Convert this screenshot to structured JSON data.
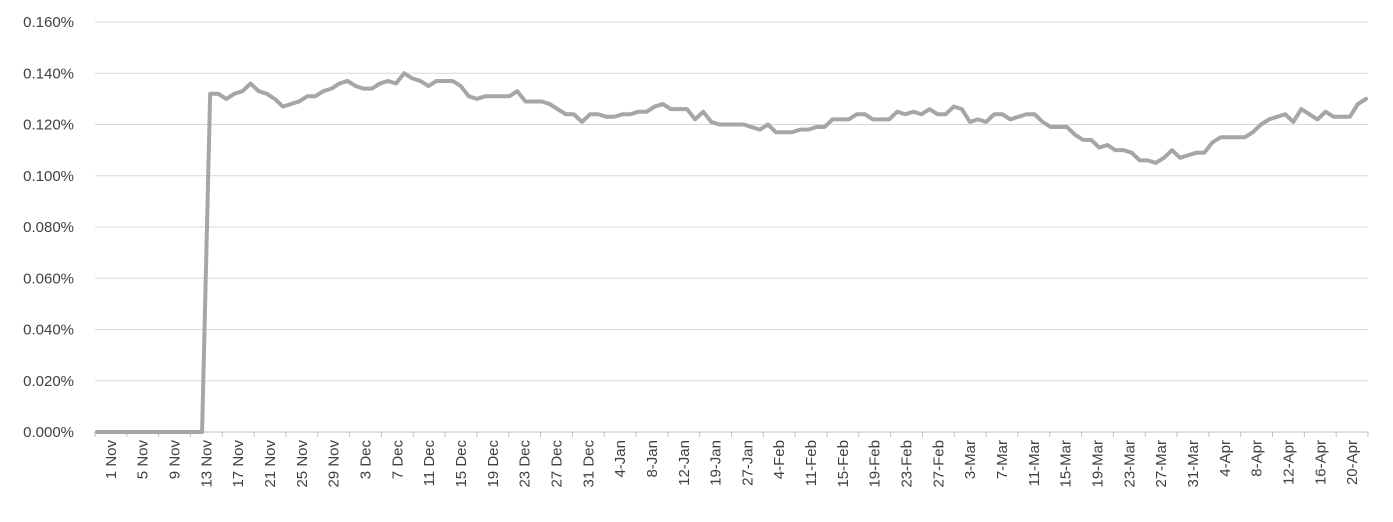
{
  "chart_data": {
    "type": "line",
    "title": "",
    "xlabel": "",
    "ylabel": "",
    "ylim": [
      0,
      0.0016
    ],
    "y_tick_labels": [
      "0.000%",
      "0.020%",
      "0.040%",
      "0.060%",
      "0.080%",
      "0.100%",
      "0.120%",
      "0.140%",
      "0.160%"
    ],
    "y_tick_values": [
      0,
      0.0002,
      0.0004,
      0.0006,
      0.0008,
      0.001,
      0.0012,
      0.0014,
      0.0016
    ],
    "grid": true,
    "legend": "none",
    "line_color": "#a6a6a6",
    "x_tick_labels": [
      "1 Nov",
      "5 Nov",
      "9 Nov",
      "13 Nov",
      "17 Nov",
      "21 Nov",
      "25 Nov",
      "29 Nov",
      "3 Dec",
      "7 Dec",
      "11 Dec",
      "15 Dec",
      "19 Dec",
      "23 Dec",
      "27 Dec",
      "31 Dec",
      "4-Jan",
      "8-Jan",
      "12-Jan",
      "19-Jan",
      "27-Jan",
      "4-Feb",
      "11-Feb",
      "15-Feb",
      "19-Feb",
      "23-Feb",
      "27-Feb",
      "3-Mar",
      "7-Mar",
      "11-Mar",
      "15-Mar",
      "19-Mar",
      "23-Mar",
      "27-Mar",
      "31-Mar",
      "4-Apr",
      "8-Apr",
      "12-Apr",
      "16-Apr",
      "20-Apr"
    ],
    "series": [
      {
        "values": [
          0,
          0,
          0,
          0,
          0,
          0,
          0,
          0,
          0,
          0,
          0,
          0,
          0,
          0,
          0.00132,
          0.00132,
          0.0013,
          0.00132,
          0.00133,
          0.00136,
          0.00133,
          0.00132,
          0.0013,
          0.00127,
          0.00128,
          0.00129,
          0.00131,
          0.00131,
          0.00133,
          0.00134,
          0.00136,
          0.00137,
          0.00135,
          0.00134,
          0.00134,
          0.00136,
          0.00137,
          0.00136,
          0.0014,
          0.00138,
          0.00137,
          0.00135,
          0.00137,
          0.00137,
          0.00137,
          0.00135,
          0.00131,
          0.0013,
          0.00131,
          0.00131,
          0.00131,
          0.00131,
          0.00133,
          0.00129,
          0.00129,
          0.00129,
          0.00128,
          0.00126,
          0.00124,
          0.00124,
          0.00121,
          0.00124,
          0.00124,
          0.00123,
          0.00123,
          0.00124,
          0.00124,
          0.00125,
          0.00125,
          0.00127,
          0.00128,
          0.00126,
          0.00126,
          0.00126,
          0.00122,
          0.00125,
          0.00121,
          0.0012,
          0.0012,
          0.0012,
          0.0012,
          0.00119,
          0.00118,
          0.0012,
          0.00117,
          0.00117,
          0.00117,
          0.00118,
          0.00118,
          0.00119,
          0.00119,
          0.00122,
          0.00122,
          0.00122,
          0.00124,
          0.00124,
          0.00122,
          0.00122,
          0.00122,
          0.00125,
          0.00124,
          0.00125,
          0.00124,
          0.00126,
          0.00124,
          0.00124,
          0.00127,
          0.00126,
          0.00121,
          0.00122,
          0.00121,
          0.00124,
          0.00124,
          0.00122,
          0.00123,
          0.00124,
          0.00124,
          0.00121,
          0.00119,
          0.00119,
          0.00119,
          0.00116,
          0.00114,
          0.00114,
          0.00111,
          0.00112,
          0.0011,
          0.0011,
          0.00109,
          0.00106,
          0.00106,
          0.00105,
          0.00107,
          0.0011,
          0.00107,
          0.00108,
          0.00109,
          0.00109,
          0.00113,
          0.00115,
          0.00115,
          0.00115,
          0.00115,
          0.00117,
          0.0012,
          0.00122,
          0.00123,
          0.00124,
          0.00121,
          0.00126,
          0.00124,
          0.00122,
          0.00125,
          0.00123,
          0.00123,
          0.00123,
          0.00128,
          0.0013
        ]
      }
    ]
  }
}
